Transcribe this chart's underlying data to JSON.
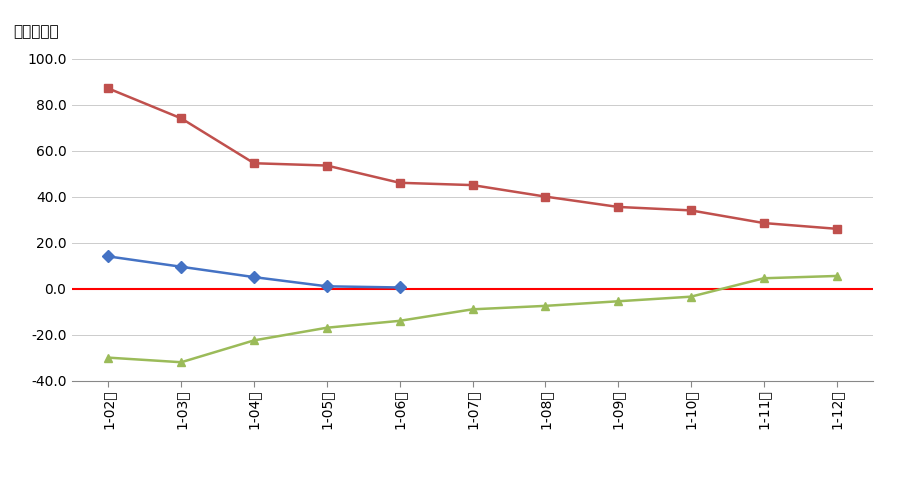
{
  "x_labels": [
    "1-02月",
    "1-03月",
    "1-04月",
    "1-05月",
    "1-06月",
    "1-07月",
    "1-08月",
    "1-09月",
    "1-10月",
    "1-11月",
    "1-12月"
  ],
  "series_2022": [
    14.0,
    9.5,
    5.0,
    1.0,
    0.5,
    null,
    null,
    null,
    null,
    null,
    null
  ],
  "series_2021": [
    87.0,
    74.0,
    54.5,
    53.5,
    46.0,
    45.0,
    40.0,
    35.5,
    34.0,
    28.5,
    26.0
  ],
  "series_2020": [
    -30.0,
    -32.0,
    -22.5,
    -17.0,
    -14.0,
    -9.0,
    -7.5,
    -5.5,
    -3.5,
    4.5,
    5.5
  ],
  "color_2022": "#4472C4",
  "color_2021": "#C0504D",
  "color_2020": "#9BBB59",
  "color_zero": "#FF0000",
  "ylabel": "同比增速％",
  "ylim": [
    -40.0,
    100.0
  ],
  "yticks": [
    -40.0,
    -20.0,
    0.0,
    20.0,
    40.0,
    60.0,
    80.0,
    100.0
  ],
  "bg_color": "#FFFFFF",
  "grid_color": "#CCCCCC"
}
